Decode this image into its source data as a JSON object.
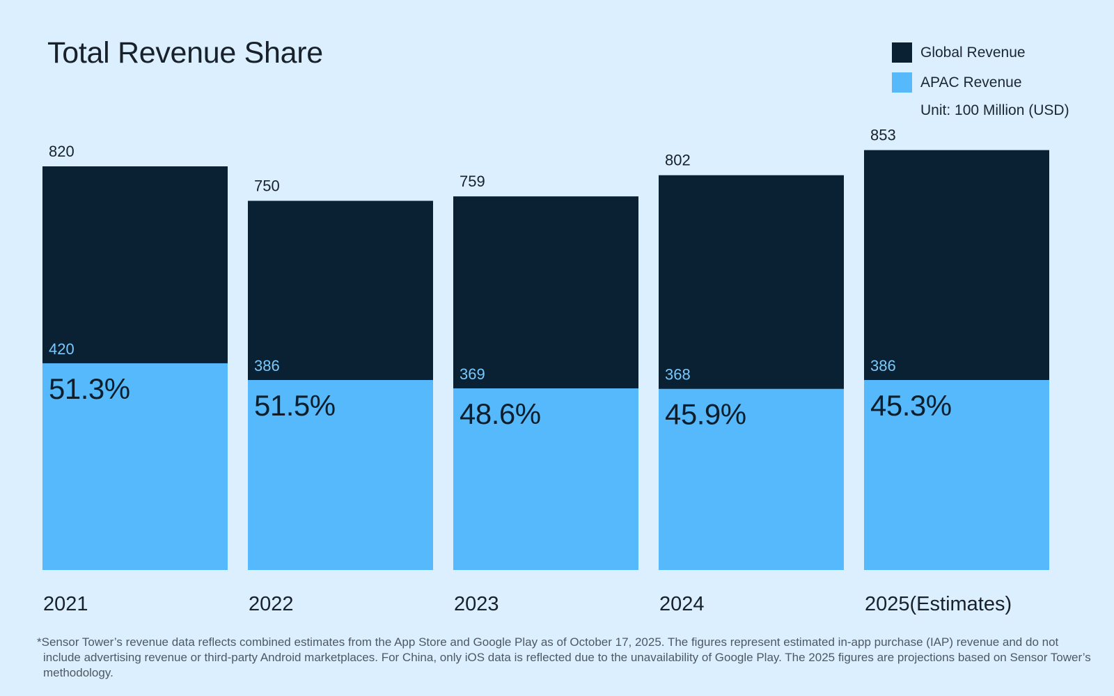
{
  "chart_data": {
    "type": "bar",
    "stacked": "overlay",
    "title": "Total Revenue Share",
    "unit_label": "Unit: 100 Million (USD)",
    "categories": [
      "2021",
      "2022",
      "2023",
      "2024",
      "2025(Estimates)"
    ],
    "series": [
      {
        "name": "Global Revenue",
        "color": "#092133",
        "values": [
          820,
          750,
          759,
          802,
          853
        ]
      },
      {
        "name": "APAC Revenue",
        "color": "#56b9fb",
        "values": [
          420,
          386,
          369,
          368,
          386
        ]
      }
    ],
    "share_labels": [
      "51.3%",
      "51.5%",
      "48.6%",
      "45.9%",
      "45.3%"
    ],
    "ylim": [
      0,
      853
    ],
    "grid": false,
    "legend_position": "top-right",
    "xlabel": "",
    "ylabel": ""
  },
  "footnote": "*Sensor Tower’s revenue data reflects combined estimates from the App Store and Google Play as of October 17, 2025. The figures represent estimated in-app purchase (IAP) revenue and do not include advertising revenue or third-party Android marketplaces. For China, only iOS data is reflected due to the unavailability of Google Play. The 2025 figures are projections based on Sensor Tower’s methodology.",
  "colors": {
    "background": "#dcefff",
    "global": "#092133",
    "apac": "#56b9fb",
    "apac_label": "#7cc8fb",
    "text": "#18212a"
  }
}
